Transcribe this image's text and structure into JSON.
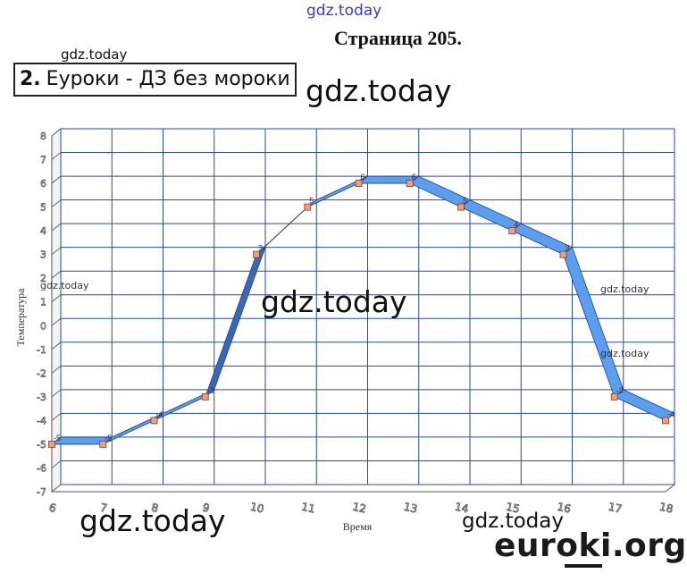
{
  "page": {
    "title": "Страница 205."
  },
  "task": {
    "number": "2.",
    "text": "Еуроки - ДЗ без мороки"
  },
  "watermarks": {
    "top": "gdz.today",
    "small1": "gdz.today",
    "big1": "gdz.today",
    "middle": "gdz.today",
    "left": "gdz.today",
    "right1": "gdz.today",
    "right2": "gdz.today",
    "bottom1": "gdz.today",
    "bottom2": "gdz.today"
  },
  "brand": {
    "text": "euroki.org"
  },
  "colors": {
    "ribbon": "#5a9ef0",
    "ribbon_dark": "#3a68b8",
    "marker": "#f0a080",
    "grid": "#2a4a9a"
  },
  "chart_data": {
    "type": "line",
    "style": "3d-ribbon",
    "title": "",
    "xlabel": "Время",
    "ylabel": "Температура",
    "xlim": [
      6,
      18
    ],
    "ylim": [
      -7,
      8
    ],
    "x_ticks": [
      "6",
      "7",
      "8",
      "9",
      "10",
      "11",
      "12",
      "13",
      "14",
      "15",
      "16",
      "17",
      "18"
    ],
    "y_ticks": [
      "8",
      "7",
      "6",
      "5",
      "4",
      "3",
      "2",
      "1",
      "0",
      "-1",
      "-2",
      "-3",
      "-4",
      "-5",
      "-6",
      "-7"
    ],
    "x": [
      6,
      7,
      8,
      9,
      10,
      11,
      12,
      13,
      14,
      15,
      16,
      17,
      18
    ],
    "values": [
      -5,
      -5,
      -4,
      -3,
      3,
      5,
      6,
      6,
      5,
      4,
      3,
      -3,
      -4
    ],
    "point_labels": [
      "-5",
      "-5",
      "-4",
      "-3",
      "3",
      "5",
      "6",
      "6",
      "5",
      "4",
      "3",
      "-3",
      "-4"
    ],
    "grid": true,
    "legend": "none"
  }
}
